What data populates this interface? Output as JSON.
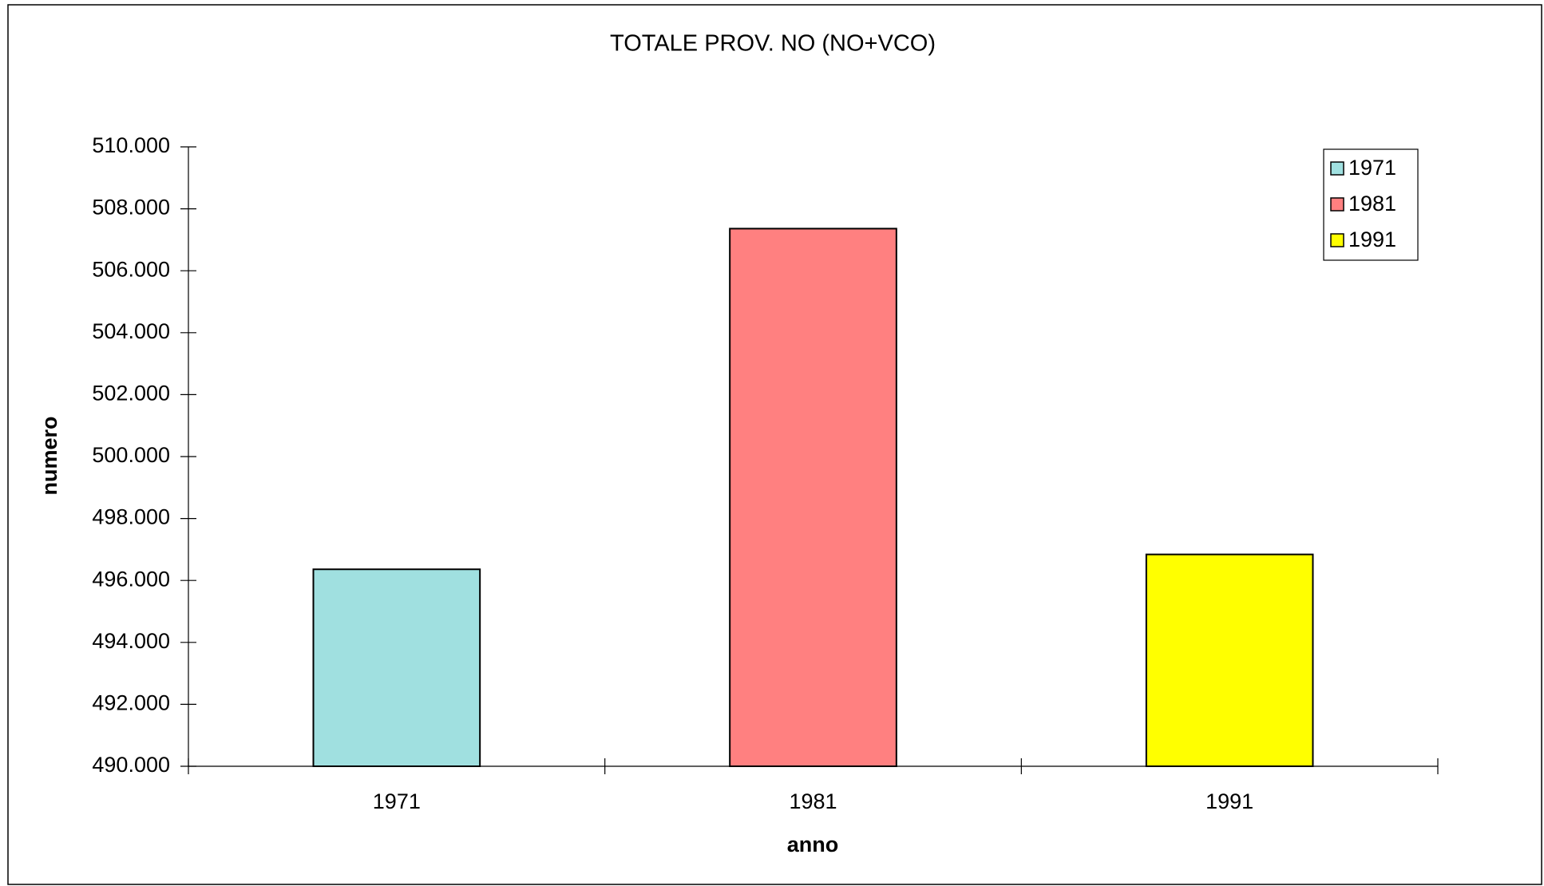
{
  "chart_data": {
    "type": "bar",
    "title": "TOTALE PROV. NO (NO+VCO)",
    "x_label": "anno",
    "y_label": "numero",
    "categories": [
      "1971",
      "1981",
      "1991"
    ],
    "values": [
      496360,
      507360,
      496840
    ],
    "colors": [
      "#a0e0e0",
      "#ff8080",
      "#ffff00"
    ],
    "ylim": [
      490000,
      510000
    ],
    "yticks": [
      {
        "value": 490000,
        "label": "490.000"
      },
      {
        "value": 492000,
        "label": "492.000"
      },
      {
        "value": 494000,
        "label": "494.000"
      },
      {
        "value": 496000,
        "label": "496.000"
      },
      {
        "value": 498000,
        "label": "498.000"
      },
      {
        "value": 500000,
        "label": "500.000"
      },
      {
        "value": 502000,
        "label": "502.000"
      },
      {
        "value": 504000,
        "label": "504.000"
      },
      {
        "value": 506000,
        "label": "506.000"
      },
      {
        "value": 508000,
        "label": "508.000"
      },
      {
        "value": 510000,
        "label": "510.000"
      }
    ],
    "grid": false,
    "legend": "top-right"
  }
}
